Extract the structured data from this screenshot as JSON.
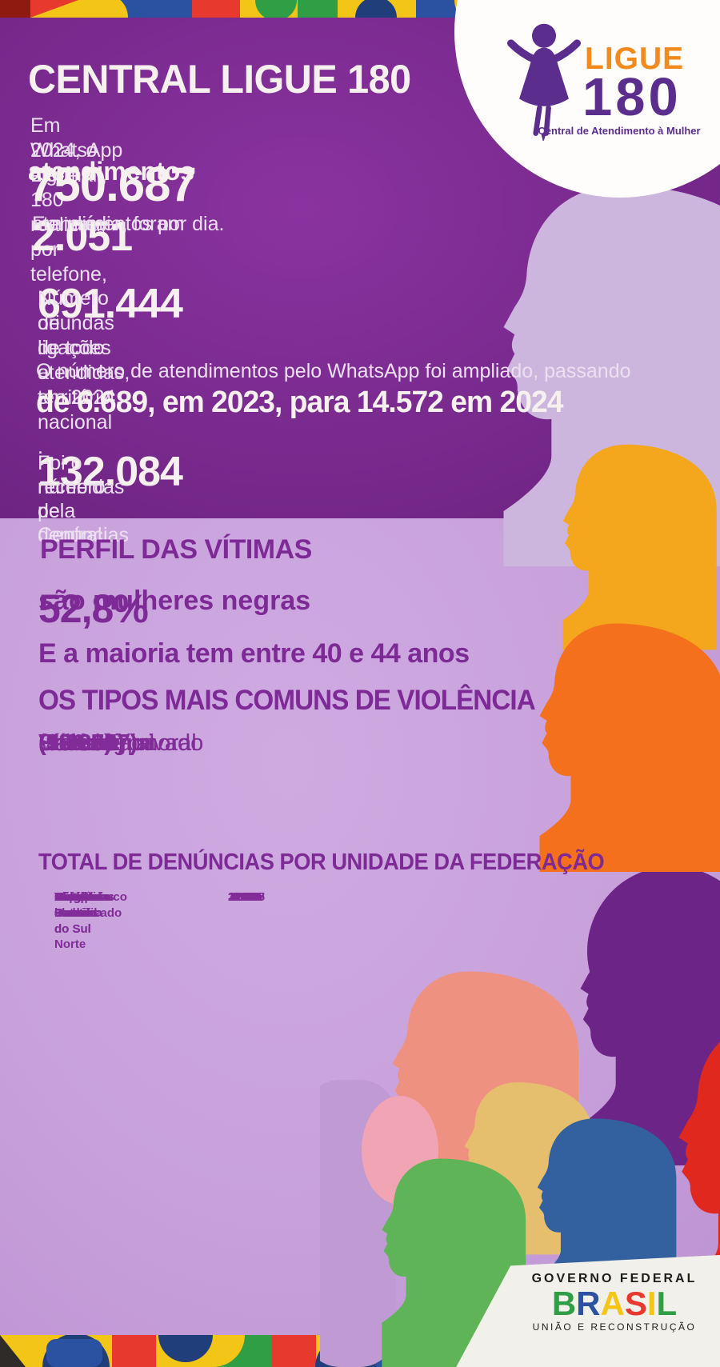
{
  "header": {
    "title": "CENTRAL LIGUE 180",
    "intro_line1": "Em 2024, o Ligue 180 realizou, por telefone,",
    "intro_line2": "WhatsApp e e-mail,",
    "total_number": "750.687",
    "total_label": "atendimentos",
    "daily_prefix": "Em média, foram",
    "daily_number": "2.051",
    "daily_suffix": "atendimentos por dia.",
    "calls_number": "691.444",
    "calls_desc_line1": "Número de ligações atendidas, em 2024,",
    "calls_desc_line2": "oriundas de todo o território nacional .",
    "whatsapp_line1": "O número de atendimentos pelo WhatsApp foi ampliado, passando",
    "whatsapp_line2": "de 6.689, em 2023, para 14.572 em 2024",
    "reports_number": "132.084",
    "reports_desc_line1": "Foi o número de denúncias",
    "reports_desc_line2": "recebidas pela Central"
  },
  "logo": {
    "ligue": "LIGUE",
    "number": "180",
    "tagline": "Central de Atendimento à Mulher"
  },
  "profile": {
    "heading": "PERFIL DAS VÍTIMAS",
    "stat_percent": "52,8%",
    "stat_label": "são mulheres negras",
    "age_line": "E a maioria tem entre 40 e 44 anos",
    "violence_heading": "OS TIPOS MAIS COMUNS DE VIOLÊNCIA",
    "violence_types": [
      {
        "label": "Psicológica",
        "value": "(101.007)"
      },
      {
        "label": "Sexual",
        "value": "(10.203)"
      },
      {
        "label": "Física",
        "value": "(78.651)"
      },
      {
        "label": "Violência moral",
        "value": "(9.180)"
      },
      {
        "label": "Patrimonial",
        "value": "(19.095)"
      },
      {
        "label": "Cárcere privado",
        "value": "(3.027)"
      }
    ]
  },
  "table": {
    "heading": "TOTAL DE DENÚNCIAS POR UNIDADE DA FEDERAÇÃO",
    "rows": [
      {
        "state": "Acre",
        "value": "384"
      },
      {
        "state": "Alagoas",
        "value": "1.725"
      },
      {
        "state": "Amapá",
        "value": "2.622"
      },
      {
        "state": "Amazonas",
        "value": "331"
      },
      {
        "state": "Bahia",
        "value": "9.090"
      },
      {
        "state": "Ceará",
        "value": "3.383"
      },
      {
        "state": "Distrito Federal",
        "value": "2.923"
      },
      {
        "state": "Espírito Santo",
        "value": "2.670"
      },
      {
        "state": "Goiás",
        "value": "4.422"
      },
      {
        "state": "Maranhão",
        "value": "2.833"
      },
      {
        "state": "Mato Grosso",
        "value": "1.531"
      },
      {
        "state": "Mato Grosso do Sul",
        "value": "1.999"
      },
      {
        "state": "Minas Gerais",
        "value": "12.815"
      },
      {
        "state": "Pará",
        "value": "2.479"
      },
      {
        "state": "Paraíba",
        "value": "1.580"
      },
      {
        "state": "Paraná",
        "value": "4.503"
      },
      {
        "state": "Pernambuco",
        "value": "4.609"
      },
      {
        "state": "Piauí",
        "value": "1.509"
      },
      {
        "state": "Rio de Janeiro",
        "value": "21.528"
      },
      {
        "state": "Rio Grande do Norte",
        "value": "1.574"
      },
      {
        "state": "Rio Grande do Sul",
        "value": "6.153"
      },
      {
        "state": "Rondônia",
        "value": "606"
      },
      {
        "state": "Roraima",
        "value": "220"
      },
      {
        "state": "Santa Catarina",
        "value": "4.029"
      },
      {
        "state": "São Paulo",
        "value": "31.227"
      },
      {
        "state": "Sergipe",
        "value": "1.172"
      },
      {
        "state": "Tocantins",
        "value": "630"
      },
      {
        "state": "Não identificado",
        "value": "3.537"
      }
    ]
  },
  "footer": {
    "gov_line": "GOVERNO FEDERAL",
    "brand": "BRASIL",
    "brand_colors": [
      "#2f9e44",
      "#2b52a0",
      "#f3c516",
      "#e8392f",
      "#f3c516",
      "#2f9e44"
    ],
    "tagline": "UNIÃO E RECONSTRUÇÃO"
  },
  "colors": {
    "bg_dark_purple": "#7b2b90",
    "bg_light_purple": "#c8a1db",
    "text_white": "#f6f1ee",
    "text_purple": "#7e2a96",
    "logo_orange": "#f28a1e",
    "logo_purple": "#5b2e8e"
  },
  "chart_data": {
    "type": "table",
    "title": "TOTAL DE DENÚNCIAS POR UNIDADE DA FEDERAÇÃO",
    "categories": [
      "Acre",
      "Alagoas",
      "Amapá",
      "Amazonas",
      "Bahia",
      "Ceará",
      "Distrito Federal",
      "Espírito Santo",
      "Goiás",
      "Maranhão",
      "Mato Grosso",
      "Mato Grosso do Sul",
      "Minas Gerais",
      "Pará",
      "Paraíba",
      "Paraná",
      "Pernambuco",
      "Piauí",
      "Rio de Janeiro",
      "Rio Grande do Norte",
      "Rio Grande do Sul",
      "Rondônia",
      "Roraima",
      "Santa Catarina",
      "São Paulo",
      "Sergipe",
      "Tocantins",
      "Não identificado"
    ],
    "values": [
      384,
      1725,
      2622,
      331,
      9090,
      3383,
      2923,
      2670,
      4422,
      2833,
      1531,
      1999,
      12815,
      2479,
      1580,
      4503,
      4609,
      1509,
      21528,
      1574,
      6153,
      606,
      220,
      4029,
      31227,
      1172,
      630,
      3537
    ],
    "violence_types": {
      "Psicológica": 101007,
      "Física": 78651,
      "Patrimonial": 19095,
      "Sexual": 10203,
      "Violência moral": 9180,
      "Cárcere privado": 3027
    },
    "key_stats": {
      "atendimentos_2024": 750687,
      "atendimentos_por_dia": 2051,
      "ligacoes_atendidas": 691444,
      "whatsapp_2023": 6689,
      "whatsapp_2024": 14572,
      "denuncias": 132084,
      "mulheres_negras_pct": 52.8
    }
  }
}
